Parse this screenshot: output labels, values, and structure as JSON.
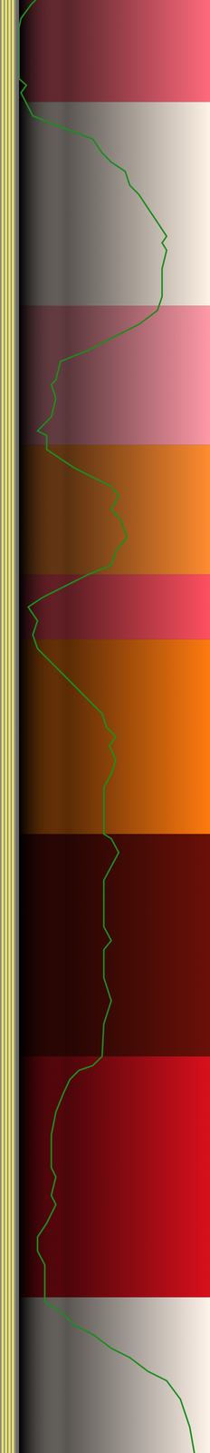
{
  "chart_data": {
    "type": "line",
    "color": "#1e8c1e",
    "tick_labels": false,
    "xlim": [
      0,
      100
    ],
    "ylim": [
      0,
      1568
    ],
    "x": [
      8.7,
      6.3,
      1,
      0,
      0,
      3.9,
      1,
      7.2,
      19.3,
      38.6,
      43.5,
      48.3,
      55.6,
      58,
      62.8,
      67.6,
      72.5,
      77.3,
      74.9,
      77.3,
      74.9,
      74.9,
      72.5,
      62.8,
      48.3,
      36.2,
      21.7,
      19.3,
      16.9,
      19.3,
      16.9,
      9.7,
      14.5,
      14.5,
      21.7,
      29,
      38.6,
      48.3,
      52.2,
      48.3,
      53.1,
      56.5,
      50.7,
      48.3,
      36.2,
      21.7,
      12.1,
      4.8,
      9.7,
      7.2,
      9.7,
      16.9,
      24.2,
      31.4,
      36.2,
      43.5,
      45.9,
      50.7,
      47.3,
      50.7,
      48.3,
      44.4,
      44.4,
      48.3,
      52.2,
      44.4,
      44.4,
      48.3,
      44.4,
      44.4,
      48.3,
      44.4,
      43.5,
      38.6,
      31.4,
      26.6,
      23.2,
      19.3,
      16.9,
      16.9,
      19.3,
      16.9,
      19.3,
      14.5,
      9.7,
      9.7,
      13.5,
      13.5,
      21.7,
      29,
      38.6,
      48.3,
      58,
      67.6,
      77.3,
      84.5,
      89.4,
      91.8
    ],
    "y": [
      0,
      5,
      20,
      30,
      85,
      92,
      100,
      125,
      135,
      150,
      165,
      175,
      185,
      200,
      210,
      225,
      240,
      255,
      262,
      270,
      290,
      320,
      335,
      350,
      365,
      378,
      390,
      410,
      415,
      430,
      450,
      465,
      470,
      485,
      495,
      505,
      515,
      525,
      535,
      550,
      560,
      580,
      595,
      610,
      620,
      635,
      645,
      655,
      670,
      685,
      700,
      715,
      730,
      745,
      755,
      770,
      785,
      795,
      805,
      820,
      835,
      850,
      900,
      905,
      920,
      950,
      1000,
      1015,
      1025,
      1055,
      1080,
      1105,
      1140,
      1150,
      1155,
      1165,
      1180,
      1200,
      1225,
      1260,
      1270,
      1290,
      1300,
      1320,
      1335,
      1350,
      1365,
      1405,
      1415,
      1430,
      1440,
      1455,
      1465,
      1480,
      1490,
      1510,
      1540,
      1568
    ],
    "bands": [
      {
        "y": [
          0,
          110
        ],
        "color": "#ff6a7c"
      },
      {
        "y": [
          110,
          330
        ],
        "color": "#fff2e6"
      },
      {
        "y": [
          330,
          480
        ],
        "color": "#ff9aa8"
      },
      {
        "y": [
          480,
          620
        ],
        "color": "#ff8c30"
      },
      {
        "y": [
          620,
          690
        ],
        "color": "#ff5060"
      },
      {
        "y": [
          690,
          900
        ],
        "color": "#ff7a10"
      },
      {
        "y": [
          900,
          1140
        ],
        "color": "#6a1008"
      },
      {
        "y": [
          1140,
          1400
        ],
        "color": "#d8101c"
      },
      {
        "y": [
          1400,
          1568
        ],
        "color": "#fff4ea"
      }
    ]
  }
}
